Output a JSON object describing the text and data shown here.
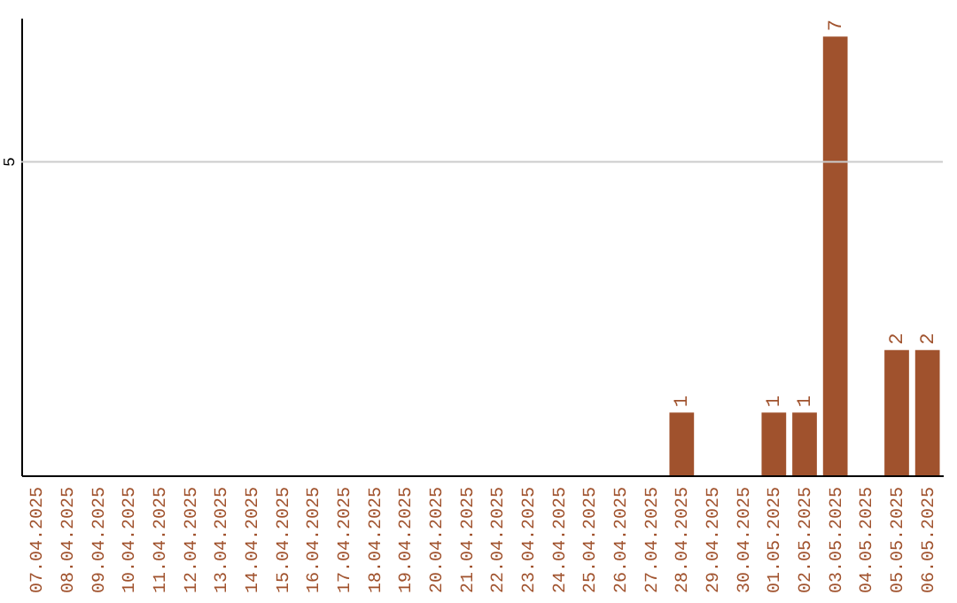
{
  "chart_data": {
    "type": "bar",
    "categories": [
      "07.04.2025",
      "08.04.2025",
      "09.04.2025",
      "10.04.2025",
      "11.04.2025",
      "12.04.2025",
      "13.04.2025",
      "14.04.2025",
      "15.04.2025",
      "16.04.2025",
      "17.04.2025",
      "18.04.2025",
      "19.04.2025",
      "20.04.2025",
      "21.04.2025",
      "22.04.2025",
      "23.04.2025",
      "24.04.2025",
      "25.04.2025",
      "26.04.2025",
      "27.04.2025",
      "28.04.2025",
      "29.04.2025",
      "30.04.2025",
      "01.05.2025",
      "02.05.2025",
      "03.05.2025",
      "04.05.2025",
      "05.05.2025",
      "06.05.2025"
    ],
    "values": [
      null,
      null,
      null,
      null,
      null,
      null,
      null,
      null,
      null,
      null,
      null,
      null,
      null,
      null,
      null,
      null,
      null,
      null,
      null,
      null,
      null,
      1,
      null,
      null,
      1,
      1,
      7,
      null,
      2,
      2
    ],
    "data_labels": true,
    "color": "#a0522d",
    "ylim": [
      0,
      7.3
    ],
    "ref_lines": [
      {
        "axis": "y",
        "value": 5,
        "label": "5",
        "color": "#cccccc"
      }
    ]
  }
}
